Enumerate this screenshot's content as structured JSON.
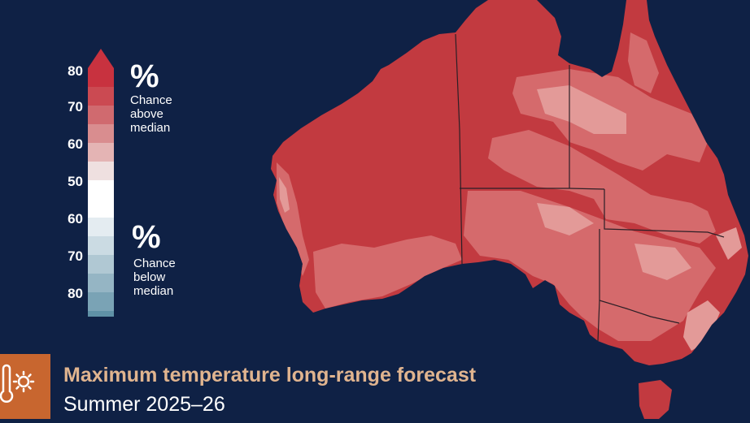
{
  "legend": {
    "ticks": [
      "80",
      "70",
      "60",
      "50",
      "60",
      "70",
      "80"
    ],
    "above": {
      "symbol": "%",
      "lines": [
        "Chance",
        "above",
        "median"
      ]
    },
    "below": {
      "symbol": "%",
      "lines": [
        "Chance",
        "below",
        "median"
      ]
    },
    "colors_above": [
      "#c8323f",
      "#cb4a52",
      "#d06a6f",
      "#d98d8f",
      "#e4b4b4",
      "#efe0e0"
    ],
    "colors_below": [
      "#e4ecf1",
      "#cbdbe3",
      "#b0c8d3",
      "#95b5c4",
      "#7aa3b5",
      "#5f91a6"
    ]
  },
  "title": {
    "main": "Maximum temperature long-range forecast",
    "sub": "Summer 2025–26",
    "icon": "thermometer-sun-icon"
  },
  "map": {
    "ocean_color": "#0f2145",
    "land_base_color": "#c23a40",
    "land_light_color": "#d56a6c",
    "land_lighter_color": "#e39a98"
  }
}
